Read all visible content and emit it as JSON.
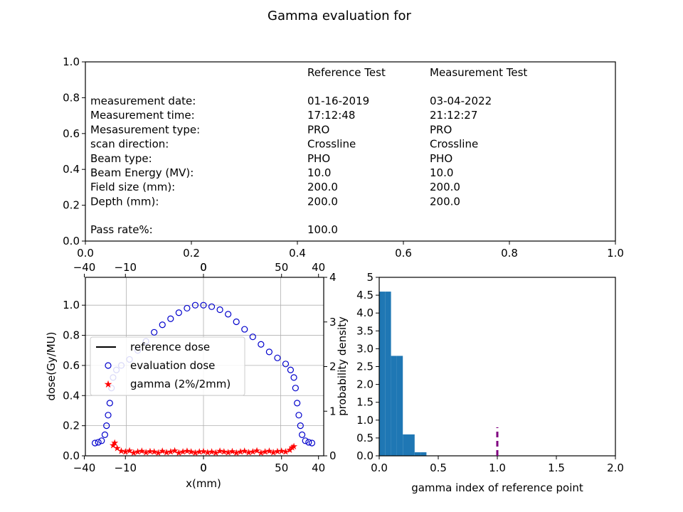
{
  "figure": {
    "suptitle": "Gamma evaluation for"
  },
  "info_table": {
    "axes_ticks_x": [
      "0.0",
      "0.2",
      "0.4",
      "0.6",
      "0.8",
      "1.0"
    ],
    "axes_ticks_y": [
      "0.0",
      "0.2",
      "0.4",
      "0.6",
      "0.8",
      "1.0"
    ],
    "col_headers": [
      "Reference Test",
      "Measurement Test"
    ],
    "rows": [
      {
        "label": "measurement date:",
        "ref": "01-16-2019",
        "meas": "03-04-2022"
      },
      {
        "label": "Measurement time:",
        "ref": "17:12:48",
        "meas": "21:12:27"
      },
      {
        "label": "Mesasurement type:",
        "ref": "PRO",
        "meas": "PRO"
      },
      {
        "label": "scan direction:",
        "ref": "Crossline",
        "meas": "Crossline"
      },
      {
        "label": "Beam type:",
        "ref": "PHO",
        "meas": "PHO"
      },
      {
        "label": "Beam Energy (MV):",
        "ref": "10.0",
        "meas": "10.0"
      },
      {
        "label": "Field size (mm):",
        "ref": "200.0",
        "meas": "200.0"
      },
      {
        "label": "Depth (mm):",
        "ref": "200.0",
        "meas": "200.0"
      }
    ],
    "pass_rate": {
      "label": "Pass rate%:",
      "value": "100.0"
    }
  },
  "chart_data": [
    {
      "type": "line",
      "xlabel": "x(mm)",
      "ylabel": "dose(Gy/MU)",
      "xlim": [
        -145,
        145
      ],
      "ylim": [
        0,
        1.1
      ],
      "y2lim": [
        0,
        4
      ],
      "x_ticks": [
        "−40",
        "−10",
        "0",
        "0",
        "50",
        "40"
      ],
      "y_ticks": [
        "0.0",
        "0.2",
        "0.4",
        "0.6",
        "0.8",
        "1.0"
      ],
      "y2_ticks": [
        "0",
        "1",
        "2",
        "3",
        "4"
      ],
      "grid": true,
      "legend": "center-left",
      "series": [
        {
          "name": "reference dose",
          "style": "line",
          "color": "#000000"
        },
        {
          "name": "evaluation dose",
          "style": "open-circle",
          "color": "#0000cc",
          "points": [
            [
              -132,
              0.085
            ],
            [
              -128,
              0.09
            ],
            [
              -124,
              0.1
            ],
            [
              -120,
              0.14
            ],
            [
              -118,
              0.2
            ],
            [
              -116,
              0.27
            ],
            [
              -114,
              0.35
            ],
            [
              -112,
              0.45
            ],
            [
              -110,
              0.52
            ],
            [
              -106,
              0.57
            ],
            [
              -100,
              0.6
            ],
            [
              -90,
              0.64
            ],
            [
              -80,
              0.7
            ],
            [
              -70,
              0.76
            ],
            [
              -60,
              0.82
            ],
            [
              -50,
              0.87
            ],
            [
              -40,
              0.91
            ],
            [
              -30,
              0.95
            ],
            [
              -20,
              0.98
            ],
            [
              -10,
              1.0
            ],
            [
              0,
              1.0
            ],
            [
              10,
              0.99
            ],
            [
              20,
              0.97
            ],
            [
              30,
              0.94
            ],
            [
              40,
              0.89
            ],
            [
              50,
              0.84
            ],
            [
              60,
              0.79
            ],
            [
              70,
              0.74
            ],
            [
              80,
              0.69
            ],
            [
              90,
              0.65
            ],
            [
              100,
              0.61
            ],
            [
              106,
              0.57
            ],
            [
              110,
              0.52
            ],
            [
              112,
              0.45
            ],
            [
              114,
              0.35
            ],
            [
              116,
              0.27
            ],
            [
              118,
              0.2
            ],
            [
              120,
              0.14
            ],
            [
              124,
              0.1
            ],
            [
              128,
              0.09
            ],
            [
              132,
              0.085
            ]
          ]
        },
        {
          "name": "gamma (2%/2mm)",
          "style": "star",
          "color": "#ff0000",
          "axis": "right",
          "points": [
            [
              -110,
              0.25
            ],
            [
              -108,
              0.3
            ],
            [
              -105,
              0.18
            ],
            [
              -100,
              0.12
            ],
            [
              -95,
              0.1
            ],
            [
              -90,
              0.13
            ],
            [
              -85,
              0.08
            ],
            [
              -80,
              0.1
            ],
            [
              -75,
              0.12
            ],
            [
              -70,
              0.09
            ],
            [
              -65,
              0.11
            ],
            [
              -60,
              0.1
            ],
            [
              -55,
              0.08
            ],
            [
              -50,
              0.12
            ],
            [
              -45,
              0.09
            ],
            [
              -40,
              0.1
            ],
            [
              -35,
              0.13
            ],
            [
              -30,
              0.08
            ],
            [
              -25,
              0.1
            ],
            [
              -20,
              0.12
            ],
            [
              -15,
              0.1
            ],
            [
              -10,
              0.08
            ],
            [
              -5,
              0.1
            ],
            [
              0,
              0.11
            ],
            [
              5,
              0.09
            ],
            [
              10,
              0.1
            ],
            [
              15,
              0.08
            ],
            [
              20,
              0.12
            ],
            [
              25,
              0.1
            ],
            [
              30,
              0.09
            ],
            [
              35,
              0.11
            ],
            [
              40,
              0.08
            ],
            [
              45,
              0.1
            ],
            [
              50,
              0.12
            ],
            [
              55,
              0.09
            ],
            [
              60,
              0.1
            ],
            [
              65,
              0.13
            ],
            [
              70,
              0.08
            ],
            [
              75,
              0.1
            ],
            [
              80,
              0.12
            ],
            [
              85,
              0.09
            ],
            [
              90,
              0.11
            ],
            [
              95,
              0.12
            ],
            [
              100,
              0.1
            ],
            [
              105,
              0.14
            ],
            [
              108,
              0.2
            ],
            [
              110,
              0.22
            ]
          ]
        }
      ]
    },
    {
      "type": "bar",
      "xlabel": "gamma index of reference point",
      "ylabel": "probability density",
      "xlim": [
        0,
        2
      ],
      "ylim": [
        0,
        5
      ],
      "x_ticks": [
        "0.0",
        "0.5",
        "1.0",
        "1.5",
        "2.0"
      ],
      "y_ticks": [
        "0.0",
        "0.5",
        "1.0",
        "1.5",
        "2.0",
        "2.5",
        "3.0",
        "3.5",
        "4.0",
        "4.5",
        "5"
      ],
      "bin_edges": [
        0.0,
        0.05,
        0.1,
        0.15,
        0.2,
        0.25,
        0.3,
        0.35,
        0.4
      ],
      "values": [
        4.6,
        4.6,
        2.8,
        2.8,
        0.6,
        0.6,
        0.1,
        0.1
      ],
      "bar_color": "#1f77b4",
      "threshold": {
        "x": 1.0,
        "ymax": 0.8,
        "color": "#800080",
        "style": "dashed"
      }
    }
  ]
}
